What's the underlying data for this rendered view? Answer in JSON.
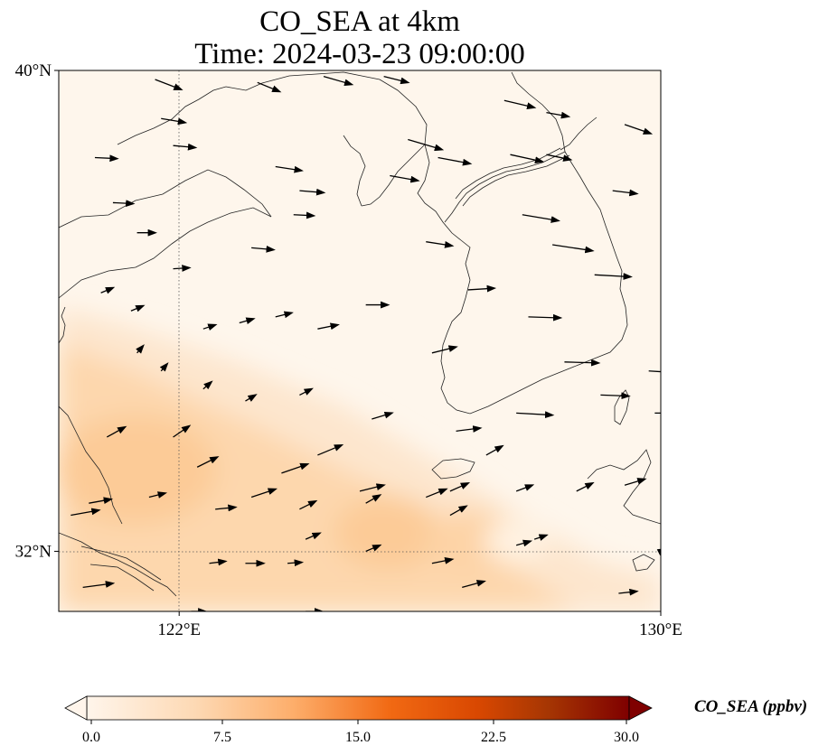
{
  "title_line1": "CO_SEA at 4km",
  "title_line2": "Time: 2024-03-23 09:00:00",
  "axes": {
    "lon_range": [
      120,
      130
    ],
    "lat_range": [
      31,
      40
    ],
    "x_ticks": [
      {
        "lon": 122,
        "label": "122°E"
      },
      {
        "lon": 130,
        "label": "130°E"
      }
    ],
    "y_ticks": [
      {
        "lat": 40,
        "label": "40°N"
      },
      {
        "lat": 32,
        "label": "32°N"
      }
    ],
    "gridlines": "dotted at 122°E and 32°N"
  },
  "colorbar": {
    "title": "CO_SEA (ppbv)",
    "min": 0,
    "max": 30,
    "ticks": [
      "0.0",
      "7.5",
      "15.0",
      "22.5",
      "30.0"
    ],
    "extend": "both",
    "colormap": [
      "#fff5eb",
      "#fdd9b4",
      "#fdae6b",
      "#f16913",
      "#d94801",
      "#a63603",
      "#7f0000"
    ]
  },
  "field_colors": {
    "background": "#fef6ec",
    "low_band": "#fde6ce",
    "mid_band": "#fdd7ad",
    "high_band": "#fccb97",
    "clean_spot": "#fff3e3"
  },
  "chart_data": {
    "type": "heatmap",
    "variable": "CO_SEA",
    "units": "ppbv",
    "description_values": {
      "north_background": 1,
      "southwest_band": 6,
      "plume_peak_near_125E_32.5N": 8,
      "clean_spot_near_127.5E_32.2N": 2
    },
    "wind_vectors": [
      {
        "lon": 121.6,
        "lat": 39.85,
        "u": 1.3,
        "v": -0.5
      },
      {
        "lon": 121.7,
        "lat": 39.2,
        "u": 1.2,
        "v": -0.2
      },
      {
        "lon": 121.9,
        "lat": 38.75,
        "u": 1.1,
        "v": -0.1
      },
      {
        "lon": 120.6,
        "lat": 38.55,
        "u": 1.1,
        "v": -0.05
      },
      {
        "lon": 120.9,
        "lat": 37.8,
        "u": 1.0,
        "v": -0.05
      },
      {
        "lon": 121.3,
        "lat": 37.3,
        "u": 0.9,
        "v": 0.0
      },
      {
        "lon": 121.9,
        "lat": 36.7,
        "u": 0.8,
        "v": 0.05
      },
      {
        "lon": 123.3,
        "lat": 39.8,
        "u": 1.1,
        "v": -0.45
      },
      {
        "lon": 123.6,
        "lat": 38.4,
        "u": 1.3,
        "v": -0.2
      },
      {
        "lon": 124.0,
        "lat": 38.0,
        "u": 1.2,
        "v": -0.1
      },
      {
        "lon": 123.9,
        "lat": 37.6,
        "u": 1.0,
        "v": -0.05
      },
      {
        "lon": 123.2,
        "lat": 37.05,
        "u": 1.1,
        "v": -0.1
      },
      {
        "lon": 124.4,
        "lat": 39.9,
        "u": 1.4,
        "v": -0.4
      },
      {
        "lon": 125.4,
        "lat": 39.9,
        "u": 1.2,
        "v": -0.3
      },
      {
        "lon": 125.8,
        "lat": 38.85,
        "u": 1.7,
        "v": -0.5
      },
      {
        "lon": 126.3,
        "lat": 38.55,
        "u": 1.6,
        "v": -0.3
      },
      {
        "lon": 125.5,
        "lat": 38.25,
        "u": 1.4,
        "v": -0.25
      },
      {
        "lon": 126.1,
        "lat": 37.15,
        "u": 1.3,
        "v": -0.2
      },
      {
        "lon": 125.1,
        "lat": 36.1,
        "u": 1.1,
        "v": 0.0
      },
      {
        "lon": 126.8,
        "lat": 36.35,
        "u": 1.3,
        "v": 0.08
      },
      {
        "lon": 127.4,
        "lat": 39.5,
        "u": 1.5,
        "v": -0.35
      },
      {
        "lon": 128.1,
        "lat": 39.3,
        "u": 1.1,
        "v": -0.2
      },
      {
        "lon": 129.4,
        "lat": 39.1,
        "u": 1.3,
        "v": -0.45
      },
      {
        "lon": 127.5,
        "lat": 38.6,
        "u": 1.6,
        "v": -0.35
      },
      {
        "lon": 128.1,
        "lat": 38.6,
        "u": 1.2,
        "v": -0.25
      },
      {
        "lon": 129.2,
        "lat": 38.0,
        "u": 1.2,
        "v": -0.15
      },
      {
        "lon": 127.7,
        "lat": 37.6,
        "u": 1.8,
        "v": -0.3
      },
      {
        "lon": 128.2,
        "lat": 37.1,
        "u": 2.0,
        "v": -0.3
      },
      {
        "lon": 128.9,
        "lat": 36.6,
        "u": 1.8,
        "v": -0.1
      },
      {
        "lon": 127.8,
        "lat": 35.9,
        "u": 1.6,
        "v": -0.05
      },
      {
        "lon": 128.4,
        "lat": 35.15,
        "u": 1.7,
        "v": -0.05
      },
      {
        "lon": 129.8,
        "lat": 35.0,
        "u": 1.7,
        "v": -0.1
      },
      {
        "lon": 129.0,
        "lat": 34.6,
        "u": 1.4,
        "v": -0.05
      },
      {
        "lon": 129.9,
        "lat": 34.3,
        "u": 1.2,
        "v": 0.0
      },
      {
        "lon": 120.7,
        "lat": 36.3,
        "u": 0.6,
        "v": 0.25
      },
      {
        "lon": 121.2,
        "lat": 36.0,
        "u": 0.6,
        "v": 0.25
      },
      {
        "lon": 122.4,
        "lat": 35.7,
        "u": 0.6,
        "v": 0.2
      },
      {
        "lon": 123.0,
        "lat": 35.8,
        "u": 0.7,
        "v": 0.2
      },
      {
        "lon": 123.6,
        "lat": 35.9,
        "u": 0.8,
        "v": 0.2
      },
      {
        "lon": 124.3,
        "lat": 35.7,
        "u": 1.0,
        "v": 0.2
      },
      {
        "lon": 121.3,
        "lat": 35.3,
        "u": 0.3,
        "v": 0.35
      },
      {
        "lon": 121.7,
        "lat": 35.0,
        "u": 0.3,
        "v": 0.35
      },
      {
        "lon": 122.4,
        "lat": 34.7,
        "u": 0.4,
        "v": 0.35
      },
      {
        "lon": 123.1,
        "lat": 34.5,
        "u": 0.5,
        "v": 0.3
      },
      {
        "lon": 124.0,
        "lat": 34.6,
        "u": 0.6,
        "v": 0.3
      },
      {
        "lon": 125.2,
        "lat": 34.2,
        "u": 1.0,
        "v": 0.3
      },
      {
        "lon": 126.2,
        "lat": 35.3,
        "u": 1.2,
        "v": 0.3
      },
      {
        "lon": 126.6,
        "lat": 34.0,
        "u": 1.2,
        "v": 0.15
      },
      {
        "lon": 127.6,
        "lat": 34.3,
        "u": 1.8,
        "v": -0.1
      },
      {
        "lon": 120.8,
        "lat": 33.9,
        "u": 0.9,
        "v": 0.5
      },
      {
        "lon": 121.9,
        "lat": 33.9,
        "u": 0.8,
        "v": 0.55
      },
      {
        "lon": 122.3,
        "lat": 33.4,
        "u": 1.0,
        "v": 0.5
      },
      {
        "lon": 123.2,
        "lat": 32.9,
        "u": 1.2,
        "v": 0.4
      },
      {
        "lon": 123.7,
        "lat": 33.3,
        "u": 1.3,
        "v": 0.45
      },
      {
        "lon": 124.3,
        "lat": 33.6,
        "u": 1.2,
        "v": 0.5
      },
      {
        "lon": 125.0,
        "lat": 33.0,
        "u": 1.2,
        "v": 0.3
      },
      {
        "lon": 126.5,
        "lat": 33.0,
        "u": 0.9,
        "v": 0.4
      },
      {
        "lon": 127.1,
        "lat": 33.6,
        "u": 0.8,
        "v": 0.45
      },
      {
        "lon": 127.6,
        "lat": 33.0,
        "u": 0.8,
        "v": 0.3
      },
      {
        "lon": 128.6,
        "lat": 33.0,
        "u": 0.8,
        "v": 0.4
      },
      {
        "lon": 129.4,
        "lat": 33.1,
        "u": 1.0,
        "v": 0.3
      },
      {
        "lon": 120.2,
        "lat": 32.6,
        "u": 1.4,
        "v": 0.25
      },
      {
        "lon": 120.5,
        "lat": 32.8,
        "u": 1.1,
        "v": 0.2
      },
      {
        "lon": 121.5,
        "lat": 32.9,
        "u": 0.8,
        "v": 0.2
      },
      {
        "lon": 122.6,
        "lat": 32.7,
        "u": 1.0,
        "v": 0.1
      },
      {
        "lon": 124.0,
        "lat": 32.7,
        "u": 0.8,
        "v": 0.4
      },
      {
        "lon": 126.1,
        "lat": 32.9,
        "u": 1.0,
        "v": 0.4
      },
      {
        "lon": 126.5,
        "lat": 32.6,
        "u": 0.8,
        "v": 0.45
      },
      {
        "lon": 125.1,
        "lat": 32.8,
        "u": 0.7,
        "v": 0.4
      },
      {
        "lon": 124.1,
        "lat": 32.2,
        "u": 0.7,
        "v": 0.3
      },
      {
        "lon": 125.1,
        "lat": 32.0,
        "u": 0.7,
        "v": 0.3
      },
      {
        "lon": 126.2,
        "lat": 31.8,
        "u": 1.0,
        "v": 0.2
      },
      {
        "lon": 127.6,
        "lat": 32.1,
        "u": 0.7,
        "v": 0.2
      },
      {
        "lon": 127.9,
        "lat": 32.2,
        "u": 0.6,
        "v": 0.2
      },
      {
        "lon": 130.0,
        "lat": 32.0,
        "u": 0.2,
        "v": 0.1
      },
      {
        "lon": 120.4,
        "lat": 31.4,
        "u": 1.5,
        "v": 0.2
      },
      {
        "lon": 122.2,
        "lat": 31.0,
        "u": 0.7,
        "v": 0.0
      },
      {
        "lon": 122.5,
        "lat": 31.8,
        "u": 0.8,
        "v": 0.1
      },
      {
        "lon": 123.1,
        "lat": 31.8,
        "u": 0.9,
        "v": 0.0
      },
      {
        "lon": 123.8,
        "lat": 31.8,
        "u": 0.7,
        "v": 0.05
      },
      {
        "lon": 124.1,
        "lat": 31.0,
        "u": 0.8,
        "v": 0.0
      },
      {
        "lon": 126.7,
        "lat": 31.4,
        "u": 1.1,
        "v": 0.3
      },
      {
        "lon": 129.3,
        "lat": 31.3,
        "u": 0.9,
        "v": 0.1
      }
    ]
  }
}
